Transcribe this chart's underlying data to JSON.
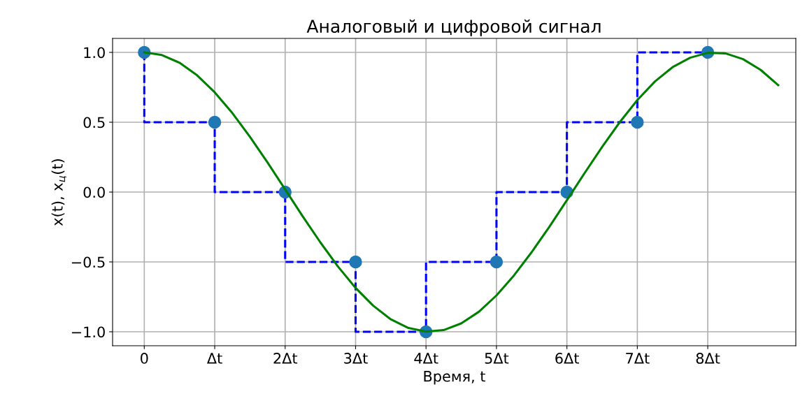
{
  "chart_data": {
    "type": "line",
    "title": "Аналоговый и цифровой сигнал",
    "xlabel": "Время, t",
    "ylabel": "x(t), x$_{ц}$(t)",
    "xlim": [
      -0.45,
      9.25
    ],
    "ylim": [
      -1.1,
      1.1
    ],
    "xticks": [
      0,
      {
        "value": 1,
        "label": "Δt"
      },
      {
        "value": 2,
        "label": "2Δt"
      },
      {
        "value": 3,
        "label": "3Δt"
      },
      {
        "value": 4,
        "label": "4Δt"
      },
      {
        "value": 5,
        "label": "5Δt"
      },
      {
        "value": 6,
        "label": "6Δt"
      },
      {
        "value": 7,
        "label": "7Δt"
      },
      {
        "value": 8,
        "label": "8Δt"
      }
    ],
    "yticks": [
      {
        "value": -1,
        "label": "−1.0"
      },
      {
        "value": -0.5,
        "label": "−0.5"
      },
      {
        "value": 0,
        "label": "0.0"
      },
      {
        "value": 0.5,
        "label": "0.5"
      },
      {
        "value": 1,
        "label": "1.0"
      }
    ],
    "grid": true,
    "series": [
      {
        "type": "line",
        "color": "#008000",
        "line_style": "solid",
        "x": [
          0,
          0.25,
          0.5,
          0.75,
          1,
          1.25,
          1.5,
          1.75,
          2,
          2.25,
          2.5,
          2.75,
          3,
          3.25,
          3.5,
          3.75,
          4,
          4.25,
          4.5,
          4.75,
          5,
          5.25,
          5.5,
          5.75,
          6,
          6.25,
          6.5,
          6.75,
          7,
          7.25,
          7.5,
          7.75,
          8,
          8.25,
          8.5,
          8.75,
          9
        ],
        "values": [
          1,
          0.981,
          0.926,
          0.836,
          0.714,
          0.566,
          0.396,
          0.212,
          0.019,
          -0.174,
          -0.36,
          -0.533,
          -0.686,
          -0.813,
          -0.911,
          -0.973,
          -0.999,
          -0.988,
          -0.94,
          -0.857,
          -0.74,
          -0.596,
          -0.43,
          -0.249,
          -0.058,
          0.135,
          0.323,
          0.5,
          0.659,
          0.792,
          0.894,
          0.962,
          0.997,
          0.993,
          0.952,
          0.875,
          0.766
        ]
      },
      {
        "type": "step",
        "color": "#0000ff",
        "line_style": "dashed",
        "x": [
          0,
          1,
          2,
          3,
          4,
          5,
          6,
          7,
          8
        ],
        "values": [
          1,
          0.5,
          0,
          -0.5,
          -1,
          -0.5,
          0,
          0.5,
          1
        ]
      },
      {
        "type": "scatter",
        "color": "#1f77b4",
        "marker": "circle",
        "x": [
          0,
          1,
          2,
          3,
          4,
          5,
          6,
          7,
          8
        ],
        "values": [
          1,
          0.5,
          0,
          -0.5,
          -1,
          -0.5,
          0,
          0.5,
          1
        ]
      }
    ]
  }
}
